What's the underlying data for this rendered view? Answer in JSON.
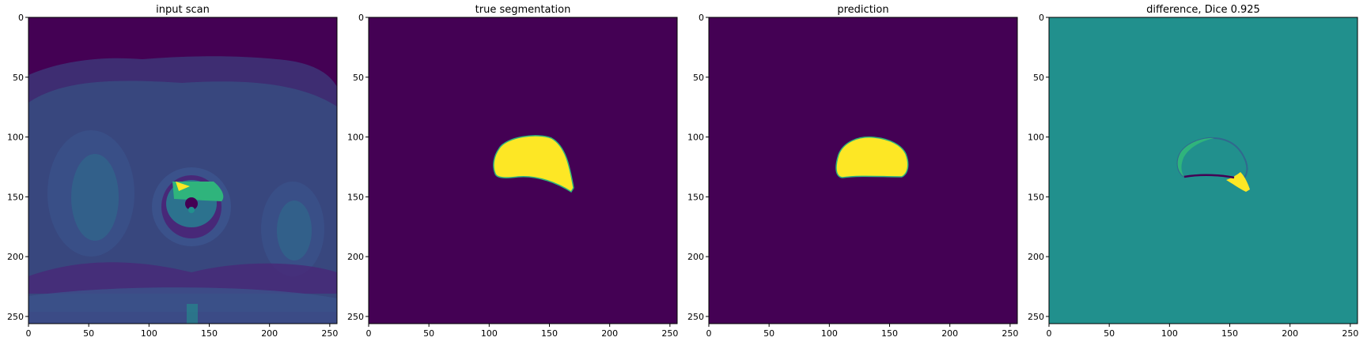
{
  "figure": {
    "panels": [
      {
        "title": "input scan",
        "kind": "mri-scan"
      },
      {
        "title": "true segmentation",
        "kind": "segmentation-truth"
      },
      {
        "title": "prediction",
        "kind": "segmentation-prediction"
      },
      {
        "title": "difference, Dice 0.925",
        "kind": "segmentation-difference"
      }
    ],
    "x_ticks": [
      0,
      50,
      100,
      150,
      200,
      250
    ],
    "y_ticks": [
      0,
      50,
      100,
      150,
      200,
      250
    ],
    "axis_range": [
      0,
      255
    ],
    "colors": {
      "viridis_dark": "#440154",
      "viridis_mid": "#21908d",
      "viridis_bright": "#fde725",
      "scan_tissue": "#3b528b",
      "scan_bright": "#2fb47c",
      "edge_blue": "#31688e"
    }
  }
}
